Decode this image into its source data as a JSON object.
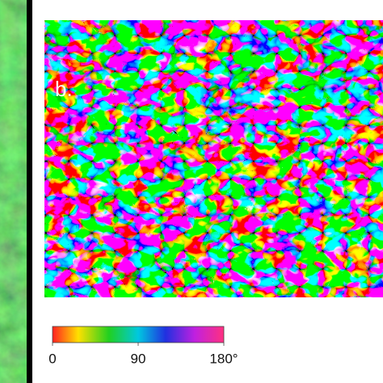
{
  "panel_label": "b.",
  "colorbar": {
    "range": [
      0,
      180
    ],
    "ticks": [
      0,
      90,
      {
        "value": 180,
        "label": "180°"
      }
    ]
  }
}
